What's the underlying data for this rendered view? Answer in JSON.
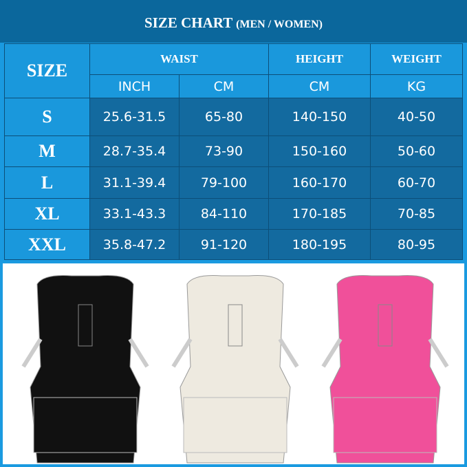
{
  "title": {
    "main": "SIZE CHART",
    "sub": "(MEN / WOMEN)"
  },
  "headers": {
    "size": "SIZE",
    "waist": "WAIST",
    "height": "HEIGHT",
    "weight": "WEIGHT",
    "inch": "INCH",
    "cm": "CM",
    "height_unit": "CM",
    "weight_unit": "KG"
  },
  "rows": [
    {
      "size": "S",
      "inch": "25.6-31.5",
      "cm": "65-80",
      "height": "140-150",
      "weight": "40-50"
    },
    {
      "size": "M",
      "inch": "28.7-35.4",
      "cm": "73-90",
      "height": "150-160",
      "weight": "50-60"
    },
    {
      "size": "L",
      "inch": "31.1-39.4",
      "cm": "79-100",
      "height": "160-170",
      "weight": "60-70"
    },
    {
      "size": "XL",
      "inch": "33.1-43.3",
      "cm": "84-110",
      "height": "170-185",
      "weight": "70-85"
    },
    {
      "size": "XXL",
      "inch": "35.8-47.2",
      "cm": "91-120",
      "height": "180-195",
      "weight": "80-95"
    }
  ],
  "products": [
    {
      "color": "#111111"
    },
    {
      "color": "#eeeae0"
    },
    {
      "color": "#f0509a"
    }
  ]
}
